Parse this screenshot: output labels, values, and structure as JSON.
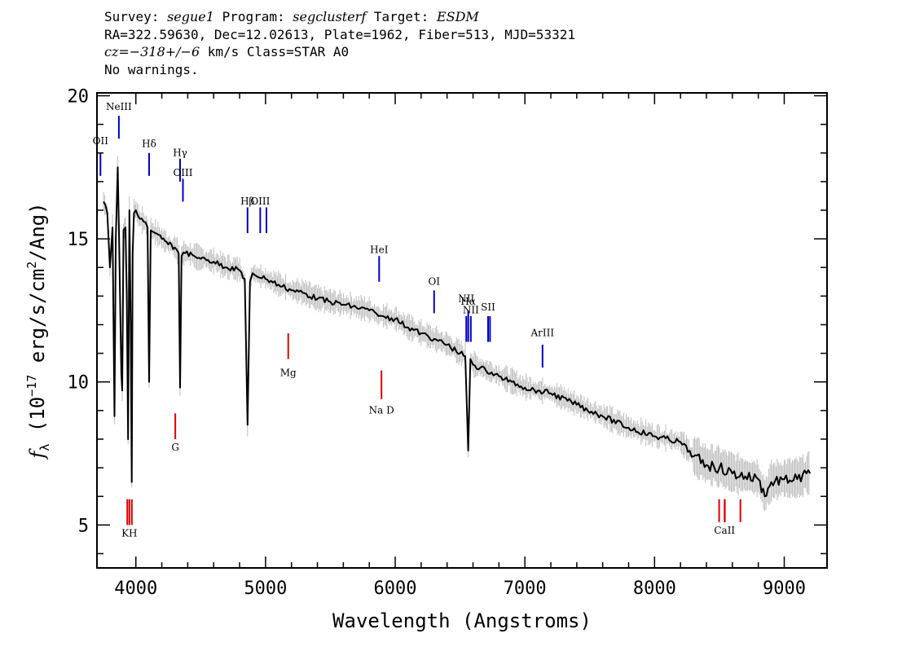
{
  "header": {
    "line1": {
      "survey_label": "Survey: ",
      "survey": "segue1",
      "program_label": " Program: ",
      "program": "segclusterf",
      "target_label": " Target: ",
      "target": "ESDM"
    },
    "line2": "RA=322.59630, Dec=12.02613, Plate=1962, Fiber=513, MJD=53321",
    "line3": {
      "cz": "cz=−318+/−6",
      "rest": " km/s Class=STAR A0"
    },
    "line4": "No warnings."
  },
  "chart_data": {
    "type": "line",
    "xlabel": "Wavelength (Angstroms)",
    "ylabel_symbol": "f",
    "ylabel_sub": "λ",
    "ylabel_pre": " (10",
    "ylabel_exp": "−17",
    "ylabel_mid": " erg/s/cm",
    "ylabel_exp2": "2",
    "ylabel_post": "/Ang)",
    "xlim": [
      3700,
      9330
    ],
    "ylim": [
      3.5,
      20.1
    ],
    "xticks": [
      4000,
      5000,
      6000,
      7000,
      8000,
      9000
    ],
    "yticks": [
      5,
      10,
      15
    ],
    "colors": {
      "spectrum": "#000000",
      "noise": "#bdbdbd",
      "emission": "#0000cc",
      "absorption": "#dd0000"
    },
    "series": [
      {
        "role": "flux",
        "x": [
          3750,
          3780,
          3800,
          3820,
          3835,
          3845,
          3860,
          3870,
          3880,
          3888,
          3895,
          3905,
          3920,
          3930,
          3940,
          3950,
          3960,
          3968,
          3975,
          3985,
          4000,
          4030,
          4060,
          4090,
          4102,
          4115,
          4150,
          4200,
          4250,
          4300,
          4330,
          4341,
          4352,
          4380,
          4450,
          4500,
          4600,
          4700,
          4800,
          4840,
          4861,
          4880,
          4900,
          5000,
          5100,
          5200,
          5300,
          5400,
          5500,
          5600,
          5700,
          5800,
          5870,
          5900,
          6000,
          6100,
          6200,
          6300,
          6400,
          6500,
          6540,
          6563,
          6580,
          6600,
          6700,
          6800,
          6900,
          7000,
          7100,
          7200,
          7400,
          7600,
          7800,
          8000,
          8200,
          8300,
          8400,
          8500,
          8600,
          8700,
          8800,
          8850,
          8900,
          9000,
          9100,
          9200
        ],
        "y": [
          16.3,
          15.9,
          14.0,
          15.4,
          8.8,
          15.0,
          17.5,
          15.1,
          12.5,
          10.3,
          9.7,
          15.3,
          15.4,
          13.0,
          8.0,
          16.0,
          12.0,
          6.5,
          14.5,
          15.9,
          16.0,
          15.7,
          15.6,
          15.4,
          10.0,
          15.3,
          15.2,
          15.0,
          14.8,
          14.7,
          14.5,
          9.8,
          14.4,
          14.5,
          14.4,
          14.3,
          14.2,
          14.0,
          13.9,
          13.6,
          8.5,
          13.5,
          13.8,
          13.6,
          13.4,
          13.2,
          13.1,
          12.9,
          12.8,
          12.7,
          12.6,
          12.5,
          12.3,
          12.3,
          12.2,
          11.9,
          11.7,
          11.5,
          11.3,
          11.0,
          10.9,
          7.6,
          10.8,
          10.6,
          10.4,
          10.2,
          10.0,
          9.8,
          9.7,
          9.6,
          9.2,
          8.8,
          8.4,
          8.1,
          7.9,
          7.4,
          7.1,
          7.0,
          6.8,
          6.7,
          6.6,
          6.0,
          6.5,
          6.6,
          6.6,
          6.8
        ]
      }
    ],
    "emission_lines": [
      {
        "label": "OII",
        "x": 3727,
        "y0": 17.2,
        "y1": 18.0,
        "text_y": 18.3
      },
      {
        "label": "NeIII",
        "x": 3869,
        "y0": 18.5,
        "y1": 19.3,
        "text_y": 19.5
      },
      {
        "label": "Hδ",
        "x": 4102,
        "y0": 17.2,
        "y1": 18.0,
        "text_y": 18.2
      },
      {
        "label": "Hγ",
        "x": 4341,
        "y0": 17.0,
        "y1": 17.8,
        "text_y": 17.9
      },
      {
        "label": "OIII",
        "x": 4363,
        "y0": 16.3,
        "y1": 17.1,
        "text_y": 17.2
      },
      {
        "label": "Hβ",
        "x": 4861,
        "y0": 15.2,
        "y1": 16.1,
        "text_y": 16.2
      },
      {
        "label": "OIII",
        "x": 4959,
        "y0": 15.2,
        "y1": 16.1,
        "text_y": 16.2
      },
      {
        "label": "",
        "x": 5007,
        "y0": 15.2,
        "y1": 16.1,
        "text_y": 0
      },
      {
        "label": "HeI",
        "x": 5876,
        "y0": 13.5,
        "y1": 14.4,
        "text_y": 14.5
      },
      {
        "label": "OI",
        "x": 6300,
        "y0": 12.4,
        "y1": 13.2,
        "text_y": 13.4
      },
      {
        "label": "NII",
        "x": 6548,
        "y0": 11.4,
        "y1": 12.3,
        "text_y": 12.8
      },
      {
        "label": "Hα",
        "x": 6563,
        "y0": 11.4,
        "y1": 12.5,
        "text_y": 12.7
      },
      {
        "label": "NII",
        "x": 6583,
        "y0": 11.4,
        "y1": 12.3,
        "text_y": 12.4
      },
      {
        "label": "SII",
        "x": 6716,
        "y0": 11.4,
        "y1": 12.3,
        "text_y": 12.5
      },
      {
        "label": "",
        "x": 6731,
        "y0": 11.4,
        "y1": 12.3,
        "text_y": 0
      },
      {
        "label": "ArIII",
        "x": 7136,
        "y0": 10.5,
        "y1": 11.3,
        "text_y": 11.6
      }
    ],
    "absorption_lines": [
      {
        "label": "Mg",
        "x": 5175,
        "y0": 10.8,
        "y1": 11.7,
        "text_y": 10.2
      },
      {
        "label": "Na D",
        "x": 5894,
        "y0": 9.4,
        "y1": 10.4,
        "text_y": 8.9
      },
      {
        "label": "G",
        "x": 4304,
        "y0": 8.0,
        "y1": 8.9,
        "text_y": 7.6
      },
      {
        "label": "KH",
        "x": 3950,
        "y0": 5.0,
        "y1": 5.9,
        "text_y": 4.6
      },
      {
        "label": "",
        "x": 3934,
        "y0": 5.0,
        "y1": 5.9,
        "text_y": 0
      },
      {
        "label": "",
        "x": 3969,
        "y0": 5.0,
        "y1": 5.9,
        "text_y": 0
      },
      {
        "label": "CaII",
        "x": 8540,
        "y0": 5.1,
        "y1": 5.9,
        "text_y": 4.7
      },
      {
        "label": "",
        "x": 8498,
        "y0": 5.1,
        "y1": 5.9,
        "text_y": 0
      },
      {
        "label": "",
        "x": 8542,
        "y0": 5.1,
        "y1": 5.9,
        "text_y": 0
      },
      {
        "label": "",
        "x": 8662,
        "y0": 5.1,
        "y1": 5.9,
        "text_y": 0
      }
    ]
  }
}
